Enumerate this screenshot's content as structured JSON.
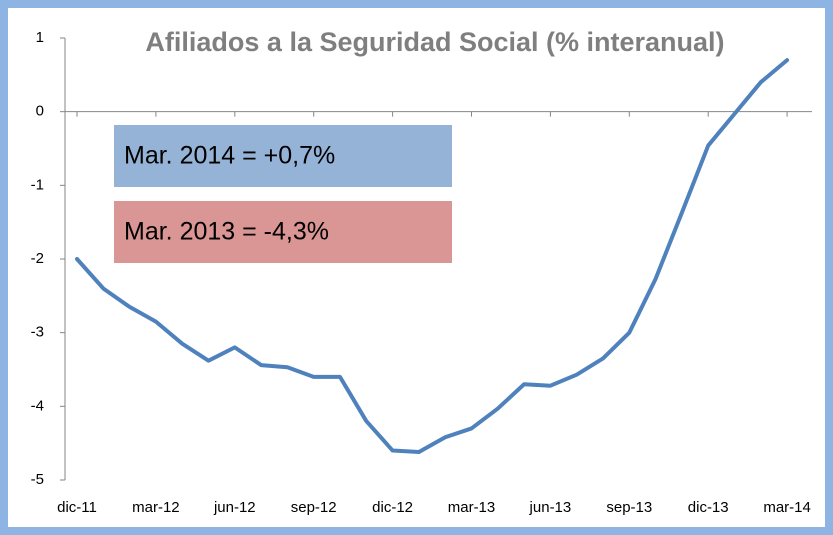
{
  "chart_data": {
    "type": "line",
    "title": "Afiliados a la Seguridad Social (% interanual)",
    "annotations": [
      "Mar. 2014 = +0,7%",
      "Mar. 2013 = -4,3%"
    ],
    "annotation_colors": [
      "#95b3d7",
      "#da9694"
    ],
    "categories": [
      "dic-11",
      null,
      null,
      "mar-12",
      null,
      null,
      "jun-12",
      null,
      null,
      "sep-12",
      null,
      null,
      "dic-12",
      null,
      null,
      "mar-13",
      null,
      null,
      "jun-13",
      null,
      null,
      "sep-13",
      null,
      null,
      "dic-13",
      null,
      null,
      "mar-14"
    ],
    "series": [
      {
        "name": "Afiliados",
        "color": "#4f81bd",
        "values": [
          -2.0,
          -2.4,
          -2.65,
          -2.85,
          -3.15,
          -3.38,
          -3.2,
          -3.44,
          -3.47,
          -3.6,
          -3.6,
          -4.2,
          -4.6,
          -4.62,
          -4.42,
          -4.3,
          -4.03,
          -3.7,
          -3.72,
          -3.57,
          -3.35,
          -3.0,
          -2.27,
          -1.37,
          -0.46,
          -0.03,
          0.4,
          0.7
        ]
      }
    ],
    "ylim": [
      -5,
      1
    ],
    "yticks": [
      -5,
      -4,
      -3,
      -2,
      -1,
      0,
      1
    ]
  }
}
